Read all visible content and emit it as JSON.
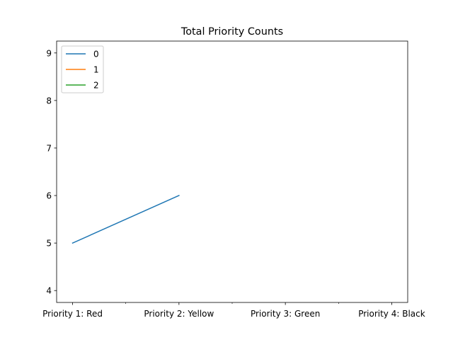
{
  "chart_data": {
    "type": "line",
    "title": "Total Priority Counts",
    "xlabel": "",
    "ylabel": "",
    "categories": [
      "Priority 1: Red",
      "Priority 2: Yellow",
      "Priority 3: Green",
      "Priority 4: Black"
    ],
    "series": [
      {
        "name": "0",
        "color": "#1f77b4",
        "values": [
          5,
          6,
          null,
          null
        ]
      },
      {
        "name": "1",
        "color": "#ff7f0e",
        "values": [
          null,
          null,
          null,
          null
        ]
      },
      {
        "name": "2",
        "color": "#2ca02c",
        "values": [
          null,
          null,
          null,
          null
        ]
      }
    ],
    "ylim": [
      3.75,
      9.25
    ],
    "yticks": [
      4,
      5,
      6,
      7,
      8,
      9
    ],
    "grid": false,
    "legend": "top-left"
  }
}
